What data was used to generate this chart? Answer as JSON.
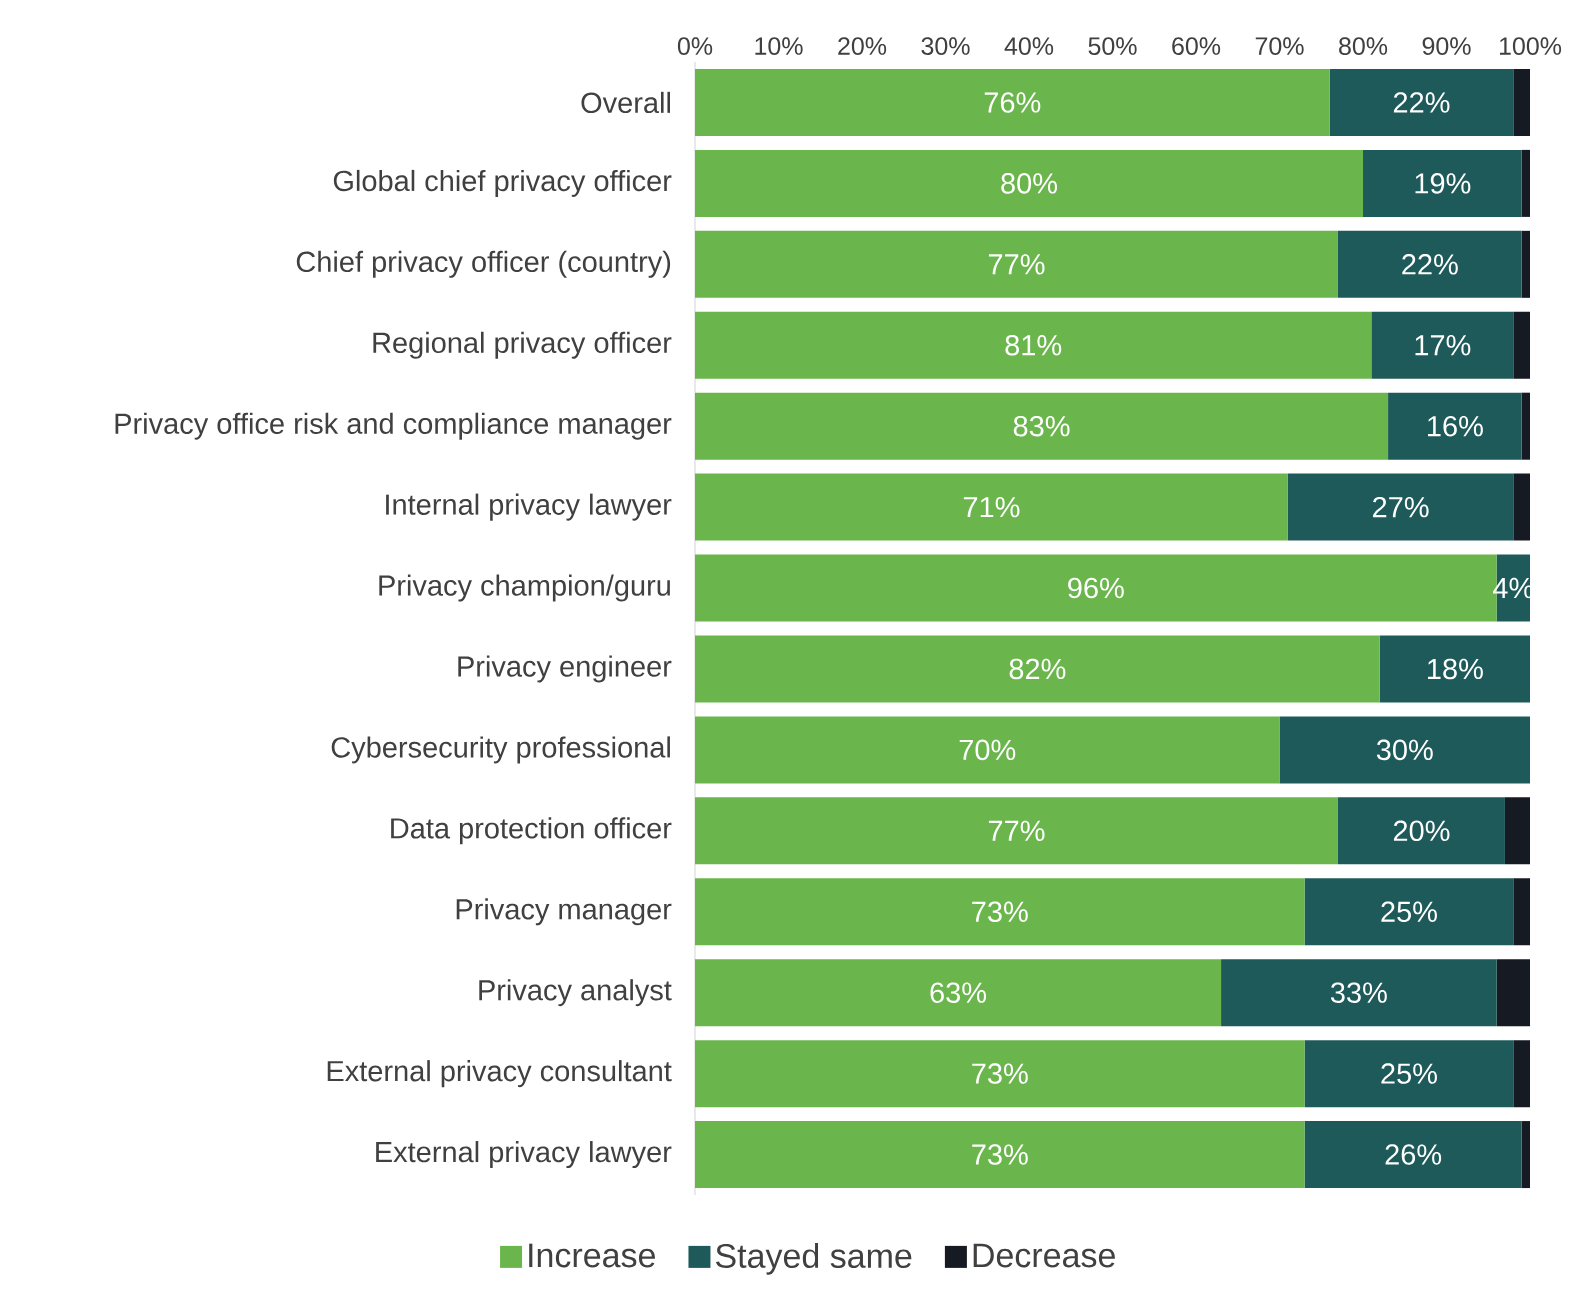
{
  "chart_data": {
    "type": "bar",
    "orientation": "horizontal",
    "stacked": true,
    "categories": [
      "Overall",
      "Global chief privacy officer",
      "Chief privacy officer (country)",
      "Regional privacy officer",
      "Privacy office risk and compliance manager",
      "Internal privacy lawyer",
      "Privacy champion/guru",
      "Privacy engineer",
      "Cybersecurity professional",
      "Data protection officer",
      "Privacy manager",
      "Privacy analyst",
      "External privacy consultant",
      "External privacy lawyer"
    ],
    "series": [
      {
        "name": "Increase",
        "color": "#6ab64c",
        "values": [
          76,
          80,
          77,
          81,
          83,
          71,
          96,
          82,
          70,
          77,
          73,
          63,
          73,
          73
        ],
        "value_labels": [
          "76%",
          "80%",
          "77%",
          "81%",
          "83%",
          "71%",
          "96%",
          "82%",
          "70%",
          "77%",
          "73%",
          "63%",
          "73%",
          "73%"
        ]
      },
      {
        "name": "Stayed same",
        "color": "#1f5a5a",
        "values": [
          22,
          19,
          22,
          17,
          16,
          27,
          4,
          18,
          30,
          20,
          25,
          33,
          25,
          26
        ],
        "value_labels": [
          "22%",
          "19%",
          "22%",
          "17%",
          "16%",
          "27%",
          "4%",
          "18%",
          "30%",
          "20%",
          "25%",
          "33%",
          "25%",
          "26%"
        ]
      },
      {
        "name": "Decrease",
        "color": "#161a22",
        "values": [
          2,
          1,
          1,
          2,
          1,
          2,
          0,
          0,
          0,
          3,
          2,
          4,
          2,
          1
        ]
      }
    ],
    "xlim": [
      0,
      100
    ],
    "xticks": [
      {
        "value": 0,
        "label": "0%"
      },
      {
        "value": 10,
        "label": "10%"
      },
      {
        "value": 20,
        "label": "20%"
      },
      {
        "value": 30,
        "label": "30%"
      },
      {
        "value": 40,
        "label": "40%"
      },
      {
        "value": 50,
        "label": "50%"
      },
      {
        "value": 60,
        "label": "60%"
      },
      {
        "value": 70,
        "label": "70%"
      },
      {
        "value": 80,
        "label": "80%"
      },
      {
        "value": 90,
        "label": "90%"
      },
      {
        "value": 100,
        "label": "100%"
      }
    ],
    "legend": "bottom"
  }
}
